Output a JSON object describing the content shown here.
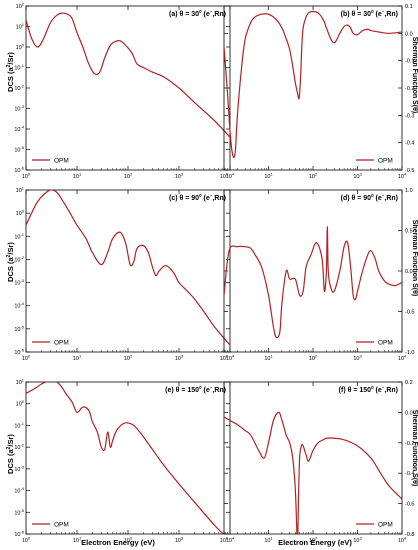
{
  "figure": {
    "xlabel": "Electron Energy (eV)",
    "ylabel_left": "DCS (a",
    "ylabel_left_sup": "2",
    "ylabel_left_tail": "/Sr)",
    "ylabel_right": "Sherman Function S(θ)"
  },
  "chart_data": [
    {
      "id": "a",
      "type": "line",
      "yscale": "log",
      "title": "(a) θ = 30",
      "title_sup": "0",
      "title_tail": " (e",
      "title_tail_sup": "−",
      "title_end": ",Rn)",
      "xlim": [
        1,
        10000
      ],
      "ylim": [
        1e-06,
        100.0
      ],
      "grid": false,
      "legend": {
        "placement": "bottom-left",
        "entries": [
          "OPM"
        ]
      },
      "x_ticks": [
        "1",
        "10",
        "100",
        "1000",
        "10000"
      ],
      "y_ticks": [
        "10^2",
        "10^1",
        "10^0",
        "10^-1",
        "10^-2",
        "10^-3",
        "10^-4",
        "10^-5",
        "10^-6"
      ],
      "series": [
        {
          "name": "OPM",
          "color": "#b22222",
          "x": [
            1,
            1.3,
            1.7,
            2.2,
            3,
            4,
            5,
            6.5,
            8,
            10,
            13,
            17,
            22,
            28,
            35,
            45,
            55,
            70,
            90,
            120,
            150,
            200,
            300,
            500,
            1000,
            2000,
            5000,
            10000
          ],
          "y": [
            20,
            2.5,
            1.0,
            2.5,
            15,
            35,
            45,
            40,
            25,
            5,
            1.0,
            0.15,
            0.05,
            0.06,
            0.3,
            1.2,
            1.8,
            2.0,
            1.2,
            0.5,
            0.15,
            0.1,
            0.06,
            0.035,
            0.01,
            0.002,
            0.00025,
            4e-05
          ]
        }
      ]
    },
    {
      "id": "b",
      "type": "line",
      "yscale": "linear",
      "title": "(b) θ = 30",
      "title_sup": "0",
      "title_tail": " (e",
      "title_tail_sup": "−",
      "title_end": ",Rn)",
      "xlim": [
        1,
        10000
      ],
      "ylim": [
        -0.5,
        0.1
      ],
      "grid": false,
      "legend": {
        "placement": "bottom-right",
        "entries": [
          "OPM"
        ]
      },
      "x_ticks": [
        "1",
        "10",
        "100",
        "1000",
        "10000"
      ],
      "y_ticks": [
        "0.1",
        "0.0",
        "-0.1",
        "-0.2",
        "-0.3",
        "-0.4",
        "-0.5"
      ],
      "series": [
        {
          "name": "OPM",
          "color": "#b22222",
          "x": [
            1,
            1.2,
            1.4,
            1.6,
            1.8,
            2,
            2.5,
            3,
            4,
            5,
            7,
            10,
            15,
            20,
            25,
            30,
            35,
            40,
            45,
            48,
            50,
            53,
            56,
            60,
            70,
            80,
            100,
            130,
            170,
            200,
            250,
            300,
            350,
            400,
            500,
            600,
            700,
            800,
            1000,
            1300,
            1700,
            2000,
            3000,
            5000,
            10000
          ],
          "y": [
            -0.05,
            -0.22,
            -0.38,
            -0.45,
            -0.43,
            -0.3,
            -0.12,
            -0.02,
            0.04,
            0.06,
            0.07,
            0.07,
            0.05,
            0.02,
            -0.02,
            -0.06,
            -0.12,
            -0.18,
            -0.22,
            -0.24,
            -0.22,
            -0.15,
            -0.05,
            0.02,
            0.06,
            0.075,
            0.08,
            0.075,
            0.05,
            0.02,
            -0.02,
            -0.035,
            -0.02,
            0.0,
            0.025,
            0.03,
            0.02,
            0.0,
            -0.005,
            0.01,
            0.015,
            0.01,
            0.005,
            0.0,
            0.005
          ]
        }
      ]
    },
    {
      "id": "c",
      "type": "line",
      "yscale": "log",
      "title": "(c) θ = 90",
      "title_sup": "0",
      "title_tail": " (e",
      "title_tail_sup": "−",
      "title_end": ",Rn)",
      "xlim": [
        1,
        10000
      ],
      "ylim": [
        1e-06,
        10.0
      ],
      "grid": false,
      "legend": {
        "placement": "bottom-left",
        "entries": [
          "OPM"
        ]
      },
      "x_ticks": [
        "1",
        "10",
        "100",
        "1000",
        "10000"
      ],
      "y_ticks": [
        "10^1",
        "10^0",
        "10^-1",
        "10^-2",
        "10^-3",
        "10^-4",
        "10^-5",
        "10^-6"
      ],
      "series": [
        {
          "name": "OPM",
          "color": "#b22222",
          "x": [
            1,
            1.5,
            2,
            3,
            4,
            5,
            7,
            10,
            15,
            20,
            30,
            40,
            50,
            70,
            90,
            110,
            130,
            150,
            200,
            250,
            300,
            350,
            400,
            500,
            600,
            800,
            1000,
            1500,
            2000,
            3000,
            5000,
            10000
          ],
          "y": [
            0.3,
            2,
            5,
            10,
            8,
            4,
            1.2,
            0.3,
            0.08,
            0.02,
            0.006,
            0.02,
            0.08,
            0.15,
            0.05,
            0.006,
            0.008,
            0.03,
            0.04,
            0.02,
            0.005,
            0.002,
            0.003,
            0.005,
            0.005,
            0.0025,
            0.001,
            0.0004,
            0.0002,
            6e-05,
            1.2e-05,
            2e-06
          ]
        }
      ]
    },
    {
      "id": "d",
      "type": "line",
      "yscale": "linear",
      "title": "(d) θ = 90",
      "title_sup": "0",
      "title_tail": " (e",
      "title_tail_sup": "−",
      "title_end": ",Rn)",
      "xlim": [
        1,
        10000
      ],
      "ylim": [
        -1.0,
        1.0
      ],
      "grid": false,
      "legend": {
        "placement": "bottom-right",
        "entries": [
          "OPM"
        ]
      },
      "x_ticks": [
        "1",
        "10",
        "100",
        "1000",
        "10000"
      ],
      "y_ticks": [
        "1.0",
        "0.5",
        "0.0",
        "-0.5",
        "-1.0"
      ],
      "series": [
        {
          "name": "OPM",
          "color": "#b22222",
          "x": [
            1,
            1.3,
            2,
            3,
            4,
            5,
            7,
            10,
            13,
            15,
            18,
            20,
            25,
            30,
            40,
            50,
            60,
            70,
            90,
            120,
            160,
            180,
            200,
            210,
            220,
            250,
            300,
            400,
            500,
            600,
            700,
            800,
            900,
            1000,
            1300,
            1700,
            2000,
            2500,
            3000,
            4000,
            5000,
            7000,
            10000
          ],
          "y": [
            -0.3,
            0.25,
            0.3,
            0.3,
            0.28,
            0.2,
            0.05,
            -0.3,
            -0.7,
            -0.82,
            -0.75,
            -0.4,
            0.0,
            -0.1,
            -0.1,
            -0.3,
            -0.25,
            0.05,
            0.2,
            0.35,
            0.15,
            -0.25,
            0.0,
            0.55,
            0.0,
            -0.2,
            -0.25,
            0.0,
            0.3,
            0.35,
            0.05,
            -0.3,
            -0.35,
            -0.25,
            0.0,
            0.2,
            0.25,
            0.15,
            0.0,
            -0.12,
            -0.16,
            -0.18,
            -0.14
          ]
        }
      ]
    },
    {
      "id": "e",
      "type": "line",
      "yscale": "log",
      "title": "(e) θ = 150",
      "title_sup": "0",
      "title_tail": " (e",
      "title_tail_sup": "−",
      "title_end": ",Rn)",
      "xlim": [
        1,
        10000
      ],
      "ylim": [
        1e-06,
        10.0
      ],
      "grid": false,
      "legend": {
        "placement": "bottom-left",
        "entries": [
          "OPM"
        ]
      },
      "x_ticks": [
        "1",
        "10",
        "100",
        "1000",
        "10000"
      ],
      "y_ticks": [
        "10^1",
        "10^0",
        "10^-1",
        "10^-2",
        "10^-3",
        "10^-4",
        "10^-5",
        "10^-6"
      ],
      "series": [
        {
          "name": "OPM",
          "color": "#b22222",
          "x": [
            1,
            1.5,
            2,
            3,
            4,
            5,
            6,
            8,
            10,
            13,
            17,
            20,
            25,
            30,
            35,
            40,
            45,
            50,
            60,
            80,
            100,
            130,
            170,
            200,
            300,
            500,
            1000,
            2000,
            5000,
            10000
          ],
          "y": [
            3,
            5,
            8,
            12,
            10,
            6,
            3,
            1.2,
            0.4,
            0.7,
            0.5,
            0.15,
            0.05,
            0.01,
            0.008,
            0.05,
            0.01,
            0.02,
            0.06,
            0.12,
            0.13,
            0.1,
            0.05,
            0.03,
            0.008,
            0.0015,
            0.0002,
            3e-05,
            2.5e-06,
            5e-07
          ]
        }
      ]
    },
    {
      "id": "f",
      "type": "line",
      "yscale": "linear",
      "title": "(f) θ = 150",
      "title_sup": "0",
      "title_tail": " (e",
      "title_tail_sup": "−",
      "title_end": ",Rn)",
      "xlim": [
        1,
        10000
      ],
      "ylim": [
        -0.8,
        0.2
      ],
      "grid": false,
      "legend": {
        "placement": "bottom-right",
        "entries": [
          "OPM"
        ]
      },
      "x_ticks": [
        "1",
        "10",
        "100",
        "1000",
        "10000"
      ],
      "y_ticks": [
        "0.2",
        "0.0",
        "-0.2",
        "-0.4",
        "-0.6",
        "-0.8"
      ],
      "series": [
        {
          "name": "OPM",
          "color": "#b22222",
          "x": [
            1,
            1.5,
            2,
            3,
            4,
            6,
            8,
            10,
            13,
            17,
            20,
            25,
            30,
            35,
            40,
            43,
            45,
            47,
            50,
            55,
            60,
            70,
            80,
            100,
            130,
            170,
            200,
            300,
            500,
            1000,
            2000,
            3000,
            5000,
            10000
          ],
          "y": [
            -0.03,
            -0.06,
            -0.08,
            -0.12,
            -0.15,
            -0.25,
            -0.3,
            -0.2,
            -0.05,
            0.0,
            -0.05,
            -0.15,
            -0.2,
            -0.3,
            -0.5,
            -0.75,
            -0.9,
            -0.6,
            -0.3,
            -0.22,
            -0.22,
            -0.28,
            -0.32,
            -0.25,
            -0.2,
            -0.18,
            -0.17,
            -0.17,
            -0.18,
            -0.22,
            -0.3,
            -0.38,
            -0.48,
            -0.57
          ]
        }
      ]
    }
  ]
}
